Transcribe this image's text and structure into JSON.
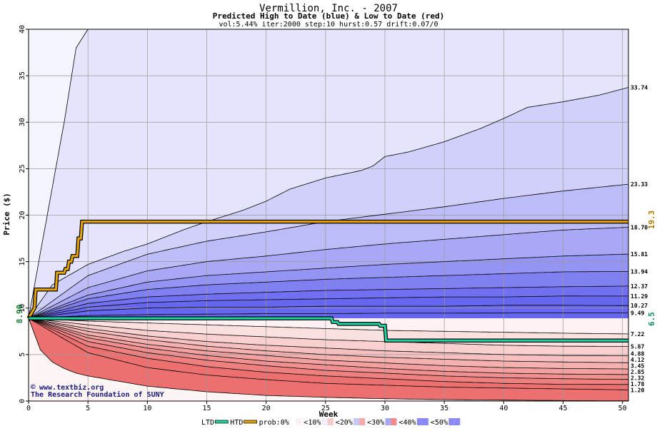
{
  "chart_data": {
    "type": "area",
    "title": "Vermillion, Inc. - 2007",
    "subtitle": "Predicted High to Date (blue) &  Low to Date (red)",
    "params": "vol:5.44% iter:2000 step:10 hurst:0.57 drift:0.07/0",
    "xlabel": "Week",
    "ylabel": "Price ($)",
    "xlim": [
      0,
      50.5
    ],
    "ylim": [
      0,
      40
    ],
    "x_ticks": [
      0,
      5,
      10,
      15,
      20,
      25,
      30,
      35,
      40,
      45,
      50
    ],
    "y_ticks": [
      0,
      5,
      10,
      15,
      20,
      25,
      30,
      35,
      40
    ],
    "grid": true,
    "start_price": 8.9,
    "start_label": "8.90",
    "series": [
      {
        "group": "high",
        "x": [
          0,
          1,
          2,
          3,
          4,
          5,
          10,
          15,
          20,
          25,
          30,
          35,
          40,
          45,
          50
        ],
        "values": [
          8.9,
          16,
          23,
          30,
          38,
          40,
          40,
          40,
          40,
          40,
          40,
          40,
          40,
          40,
          40
        ]
      },
      {
        "group": "high",
        "x": [
          0,
          2,
          5,
          8,
          10,
          13,
          15,
          18,
          20,
          22,
          25,
          28,
          29,
          30,
          32,
          35,
          38,
          40,
          42,
          45,
          48,
          50.5
        ],
        "values": [
          8.9,
          12.5,
          14.7,
          16.1,
          16.9,
          18.4,
          19.3,
          20.5,
          21.5,
          22.8,
          24.0,
          24.8,
          25.3,
          26.3,
          26.8,
          27.9,
          29.3,
          30.4,
          31.6,
          32.2,
          32.9,
          33.74
        ]
      },
      {
        "group": "high",
        "x": [
          0,
          5,
          10,
          15,
          20,
          25,
          30,
          35,
          40,
          45,
          50.5
        ],
        "values": [
          8.9,
          13.5,
          15.8,
          17.2,
          18.2,
          19.3,
          20.1,
          20.9,
          21.8,
          22.6,
          23.33
        ]
      },
      {
        "group": "high",
        "x": [
          0,
          5,
          10,
          15,
          20,
          25,
          30,
          35,
          40,
          45,
          50.5
        ],
        "values": [
          8.9,
          12.2,
          14.0,
          15.0,
          15.6,
          16.3,
          16.9,
          17.4,
          17.9,
          18.4,
          18.7
        ]
      },
      {
        "group": "high",
        "x": [
          0,
          5,
          10,
          15,
          20,
          25,
          30,
          35,
          40,
          45,
          50.5
        ],
        "values": [
          8.9,
          11.4,
          12.8,
          13.5,
          13.9,
          14.3,
          14.7,
          15.0,
          15.3,
          15.6,
          15.81
        ]
      },
      {
        "group": "high",
        "x": [
          0,
          5,
          10,
          15,
          20,
          25,
          30,
          35,
          40,
          45,
          50.5
        ],
        "values": [
          8.9,
          11.0,
          12.0,
          12.5,
          12.8,
          13.1,
          13.3,
          13.5,
          13.7,
          13.9,
          13.94
        ]
      },
      {
        "group": "high",
        "x": [
          0,
          5,
          10,
          15,
          20,
          25,
          30,
          35,
          40,
          45,
          50.5
        ],
        "values": [
          8.9,
          10.5,
          11.2,
          11.5,
          11.7,
          11.9,
          12.0,
          12.1,
          12.2,
          12.3,
          12.37
        ]
      },
      {
        "group": "high",
        "x": [
          0,
          5,
          10,
          15,
          20,
          25,
          30,
          35,
          40,
          45,
          50.5
        ],
        "values": [
          8.9,
          10.1,
          10.6,
          10.8,
          10.9,
          11.0,
          11.1,
          11.2,
          11.2,
          11.3,
          11.29
        ]
      },
      {
        "group": "high",
        "x": [
          0,
          5,
          10,
          15,
          20,
          25,
          30,
          35,
          40,
          45,
          50.5
        ],
        "values": [
          8.9,
          9.7,
          10.0,
          10.1,
          10.1,
          10.2,
          10.2,
          10.2,
          10.3,
          10.3,
          10.27
        ]
      },
      {
        "group": "high",
        "x": [
          0,
          5,
          10,
          15,
          20,
          25,
          30,
          35,
          40,
          45,
          50.5
        ],
        "values": [
          8.9,
          9.2,
          9.3,
          9.35,
          9.4,
          9.4,
          9.45,
          9.45,
          9.47,
          9.48,
          9.49
        ]
      },
      {
        "group": "low",
        "x": [
          0,
          5,
          10,
          15,
          20,
          25,
          30,
          35,
          40,
          45,
          50.5
        ],
        "values": [
          8.9,
          8.6,
          8.4,
          8.2,
          8.0,
          7.8,
          7.6,
          7.5,
          7.4,
          7.3,
          7.22
        ]
      },
      {
        "group": "low",
        "x": [
          0,
          5,
          10,
          15,
          20,
          25,
          30,
          35,
          40,
          45,
          50.5
        ],
        "values": [
          8.9,
          8.2,
          7.6,
          7.2,
          6.9,
          6.6,
          6.4,
          6.2,
          6.0,
          5.9,
          5.87
        ]
      },
      {
        "group": "low",
        "x": [
          0,
          5,
          10,
          15,
          20,
          25,
          30,
          35,
          40,
          45,
          50.5
        ],
        "values": [
          8.9,
          7.8,
          7.0,
          6.4,
          6.0,
          5.7,
          5.4,
          5.2,
          5.0,
          4.9,
          4.88
        ]
      },
      {
        "group": "low",
        "x": [
          0,
          5,
          10,
          15,
          20,
          25,
          30,
          35,
          40,
          45,
          50.5
        ],
        "values": [
          8.9,
          7.5,
          6.6,
          5.9,
          5.4,
          5.0,
          4.7,
          4.5,
          4.3,
          4.2,
          4.12
        ]
      },
      {
        "group": "low",
        "x": [
          0,
          5,
          10,
          15,
          20,
          25,
          30,
          35,
          40,
          45,
          50.5
        ],
        "values": [
          8.9,
          7.1,
          6.1,
          5.4,
          4.9,
          4.4,
          4.1,
          3.8,
          3.6,
          3.5,
          3.45
        ]
      },
      {
        "group": "low",
        "x": [
          0,
          5,
          10,
          15,
          20,
          25,
          30,
          35,
          40,
          45,
          50.5
        ],
        "values": [
          8.9,
          6.8,
          5.7,
          4.9,
          4.3,
          3.9,
          3.5,
          3.2,
          3.0,
          2.9,
          2.85
        ]
      },
      {
        "group": "low",
        "x": [
          0,
          5,
          10,
          15,
          20,
          25,
          30,
          35,
          40,
          45,
          50.5
        ],
        "values": [
          8.9,
          6.4,
          5.2,
          4.4,
          3.8,
          3.3,
          3.0,
          2.7,
          2.5,
          2.4,
          2.32
        ]
      },
      {
        "group": "low",
        "x": [
          0,
          5,
          10,
          15,
          20,
          25,
          30,
          35,
          40,
          45,
          50.5
        ],
        "values": [
          8.9,
          5.9,
          4.6,
          3.7,
          3.1,
          2.7,
          2.4,
          2.1,
          1.9,
          1.8,
          1.78
        ]
      },
      {
        "group": "low",
        "x": [
          0,
          5,
          10,
          15,
          20,
          25,
          30,
          35,
          40,
          45,
          50.5
        ],
        "values": [
          8.9,
          5.2,
          3.6,
          2.8,
          2.3,
          1.9,
          1.7,
          1.5,
          1.4,
          1.3,
          1.2
        ]
      },
      {
        "group": "low",
        "x": [
          0,
          1,
          2,
          3,
          4,
          5,
          10,
          15,
          20,
          25,
          30,
          35,
          40,
          45,
          50.5
        ],
        "values": [
          8.9,
          5.5,
          4.2,
          3.5,
          3.0,
          2.7,
          1.6,
          1.0,
          0.6,
          0.4,
          0.25,
          0.15,
          0.1,
          0.05,
          0.02
        ]
      }
    ],
    "end_labels": [
      "33.74",
      "23.33",
      "18.70",
      "15.81",
      "13.94",
      "12.37",
      "11.29",
      "10.27",
      "9.49",
      "7.22",
      "5.87",
      "4.88",
      "4.12",
      "3.45",
      "2.85",
      "2.32",
      "1.78",
      "1.20"
    ],
    "htd": {
      "name": "HTD",
      "color": "#e8a400",
      "x": [
        0,
        0.5,
        0.6,
        2.3,
        2.4,
        3.0,
        3.1,
        3.3,
        3.4,
        3.6,
        3.7,
        4.1,
        4.2,
        4.4,
        4.5,
        50.5
      ],
      "values": [
        8.9,
        10.0,
        12.0,
        12.0,
        13.8,
        13.8,
        14.2,
        14.2,
        15.0,
        15.0,
        15.6,
        15.6,
        17.5,
        17.5,
        19.3,
        19.3
      ],
      "end_label": "19.3"
    },
    "ltd": {
      "name": "LTD",
      "color": "#22d3a4",
      "x": [
        0,
        25.5,
        25.6,
        26.0,
        26.1,
        29.5,
        29.6,
        30.0,
        30.1,
        50.5
      ],
      "values": [
        8.9,
        8.9,
        8.5,
        8.5,
        8.3,
        8.3,
        8.1,
        8.1,
        6.5,
        6.5
      ],
      "end_label": "6.5"
    },
    "legend": [
      "LTD",
      "HTD",
      "prob:0%",
      "<10%",
      "<20%",
      "<30%",
      "<40%",
      "<50%"
    ],
    "legend_placement": "bottom",
    "colors": {
      "high_bands": [
        "#f4f4fe",
        "#e4e4fc",
        "#d0d0fa",
        "#bcbcf8",
        "#a8a8f6",
        "#9494f4",
        "#8080f2",
        "#7070f0",
        "#6666ee"
      ],
      "low_bands": [
        "#fdf1f1",
        "#fbe0e0",
        "#f9d0d0",
        "#f7c0c0",
        "#f5b0b0",
        "#f3a0a0",
        "#f19090",
        "#ef8080",
        "#ed7070"
      ],
      "legend_swatches": [
        "#ffffff",
        "#fdf0f0",
        "#f0f0fc",
        "#f6c8c8",
        "#c8c8f6",
        "#f4a8a8",
        "#a8a8f4",
        "#f38a8a",
        "#8a8af2"
      ],
      "start_label": "#0e7a2a",
      "htd_label": "#b07a00",
      "ltd_label": "#0e8a5a"
    }
  },
  "footer": {
    "credit_line1": "www.textbiz.org",
    "credit_line2": "The Research Foundation of SUNY"
  }
}
